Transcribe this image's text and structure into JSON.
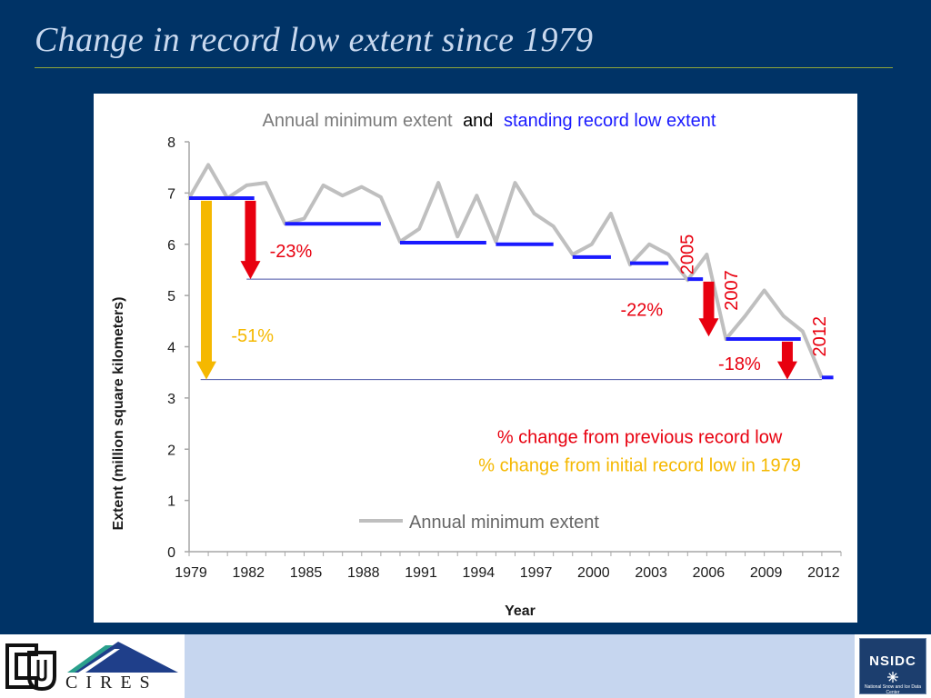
{
  "slide": {
    "title": "Change in record low extent since 1979"
  },
  "colors": {
    "background": "#003366",
    "annual": "#bfbfbf",
    "record": "#1a1aff",
    "red": "#e8000f",
    "orange": "#f5b800",
    "refline": "#4a55a6"
  },
  "chart_data": {
    "type": "line",
    "title_parts": [
      {
        "text": "Annual minimum extent",
        "color": "#7a7a7a"
      },
      {
        "text": "and",
        "color": "#000000"
      },
      {
        "text": "standing record low extent",
        "color": "#1a1aff"
      }
    ],
    "xlabel": "Year",
    "ylabel": "Extent (million square kilometers)",
    "xlim": [
      1979,
      2013
    ],
    "ylim": [
      0,
      8
    ],
    "x_ticks": [
      1979,
      1982,
      1985,
      1988,
      1991,
      1994,
      1997,
      2000,
      2003,
      2006,
      2009,
      2012
    ],
    "y_ticks": [
      0,
      1,
      2,
      3,
      4,
      5,
      6,
      7,
      8
    ],
    "grid": false,
    "series": [
      {
        "name": "Annual minimum extent",
        "color": "#bfbfbf",
        "x": [
          1979,
          1980,
          1981,
          1982,
          1983,
          1984,
          1985,
          1986,
          1987,
          1988,
          1989,
          1990,
          1991,
          1992,
          1993,
          1994,
          1995,
          1996,
          1997,
          1998,
          1999,
          2000,
          2001,
          2002,
          2003,
          2004,
          2005,
          2006,
          2007,
          2008,
          2009,
          2010,
          2011,
          2012
        ],
        "y": [
          6.9,
          7.55,
          6.9,
          7.15,
          7.2,
          6.4,
          6.5,
          7.15,
          6.95,
          7.12,
          6.92,
          6.05,
          6.3,
          7.2,
          6.15,
          6.95,
          6.05,
          7.2,
          6.6,
          6.35,
          5.8,
          6.0,
          6.6,
          5.6,
          6.0,
          5.8,
          5.3,
          5.8,
          4.15,
          4.6,
          5.1,
          4.6,
          4.3,
          3.4
        ]
      }
    ],
    "record_lows": [
      {
        "from": 1979,
        "to": 1982.4,
        "value": 6.9
      },
      {
        "from": 1984,
        "to": 1989,
        "value": 6.4
      },
      {
        "from": 1990,
        "to": 1994.5,
        "value": 6.03
      },
      {
        "from": 1995,
        "to": 1998,
        "value": 6.0
      },
      {
        "from": 1999,
        "to": 2001,
        "value": 5.75
      },
      {
        "from": 2002,
        "to": 2004,
        "value": 5.63
      },
      {
        "from": 2005,
        "to": 2005.8,
        "value": 5.32
      },
      {
        "from": 2007,
        "to": 2010.9,
        "value": 4.15
      },
      {
        "from": 2012,
        "to": 2012.6,
        "value": 3.4
      }
    ],
    "reference_lines": [
      {
        "from": 1982,
        "to": 2005.5,
        "value": 5.32
      },
      {
        "from": 1979.6,
        "to": 2012,
        "value": 3.36
      }
    ],
    "arrows": [
      {
        "x": 1979.9,
        "from": 6.85,
        "to": 3.36,
        "color": "#f5b800",
        "label": "-51%",
        "label_x": 1981.2,
        "label_y": 4.1
      },
      {
        "x": 1982.2,
        "from": 6.85,
        "to": 5.32,
        "color": "#e8000f",
        "label": "-23%",
        "label_x": 1983.2,
        "label_y": 5.75
      },
      {
        "x": 2006.1,
        "from": 5.27,
        "to": 4.2,
        "color": "#e8000f",
        "label": "-22%",
        "label_x": 2001.5,
        "label_y": 4.6
      },
      {
        "x": 2010.2,
        "from": 4.1,
        "to": 3.36,
        "color": "#e8000f",
        "label": "-18%",
        "label_x": 2006.6,
        "label_y": 3.55
      }
    ],
    "year_labels": [
      {
        "text": "2005",
        "x": 2005.3,
        "y": 5.8
      },
      {
        "text": "2007",
        "x": 2007.6,
        "y": 5.1
      },
      {
        "text": "2012",
        "x": 2012.2,
        "y": 4.2
      }
    ],
    "annotations": [
      {
        "text": "% change from previous record low",
        "color": "#e8000f",
        "x": 2002.5,
        "y": 2.12
      },
      {
        "text": "% change from initial record low in 1979",
        "color": "#f5b800",
        "x": 2002.5,
        "y": 1.57
      }
    ],
    "legend": {
      "label": "Annual minimum extent",
      "color": "#bfbfbf",
      "placement": "bottom-center"
    }
  }
}
